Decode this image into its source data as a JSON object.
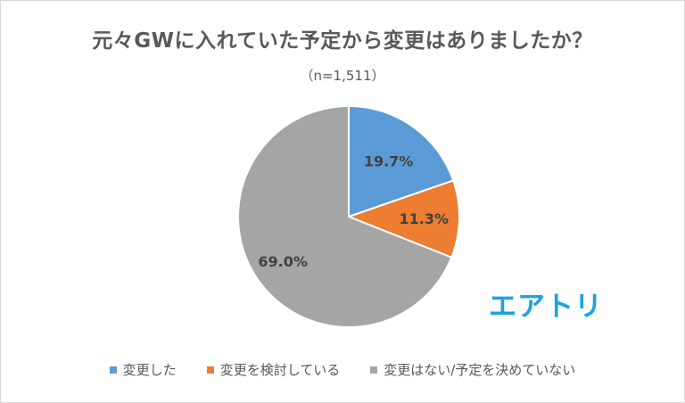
{
  "chart_data": {
    "type": "pie",
    "title": "元々GWに入れていた予定から変更はありましたか？",
    "subtitle": "（n=1,511）",
    "legend_position": "bottom",
    "categories": [
      "変更した",
      "変更を検討している",
      "変更はない/予定を決めていない"
    ],
    "values": [
      19.7,
      11.3,
      69.0
    ],
    "labels": [
      "19.7%",
      "11.3%",
      "69.0%"
    ],
    "colors": [
      "#5b9bd5",
      "#ed7d31",
      "#a5a5a5"
    ]
  },
  "logo": {
    "text": "エアトリ",
    "color": "#1aa3e0"
  }
}
